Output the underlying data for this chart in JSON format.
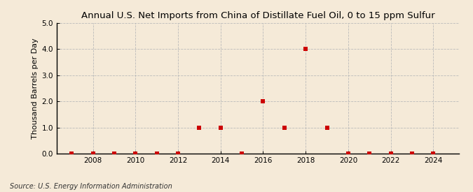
{
  "title": "Annual U.S. Net Imports from China of Distillate Fuel Oil, 0 to 15 ppm Sulfur",
  "ylabel": "Thousand Barrels per Day",
  "source": "Source: U.S. Energy Information Administration",
  "background_color": "#f5ead8",
  "years": [
    2007,
    2008,
    2009,
    2010,
    2011,
    2012,
    2013,
    2014,
    2015,
    2016,
    2017,
    2018,
    2019,
    2020,
    2021,
    2022,
    2023,
    2024
  ],
  "values": [
    0,
    0,
    0,
    0,
    0,
    0,
    1.0,
    1.0,
    0,
    2.0,
    1.0,
    4.0,
    1.0,
    0,
    0,
    0,
    0,
    0
  ],
  "marker_color": "#cc0000",
  "marker_size": 4,
  "ylim": [
    0,
    5.0
  ],
  "yticks": [
    0.0,
    1.0,
    2.0,
    3.0,
    4.0,
    5.0
  ],
  "xlim": [
    2006.3,
    2025.2
  ],
  "xticks": [
    2008,
    2010,
    2012,
    2014,
    2016,
    2018,
    2020,
    2022,
    2024
  ],
  "grid_color": "#bbbbbb",
  "title_fontsize": 9.5,
  "ylabel_fontsize": 8,
  "tick_fontsize": 7.5,
  "source_fontsize": 7
}
